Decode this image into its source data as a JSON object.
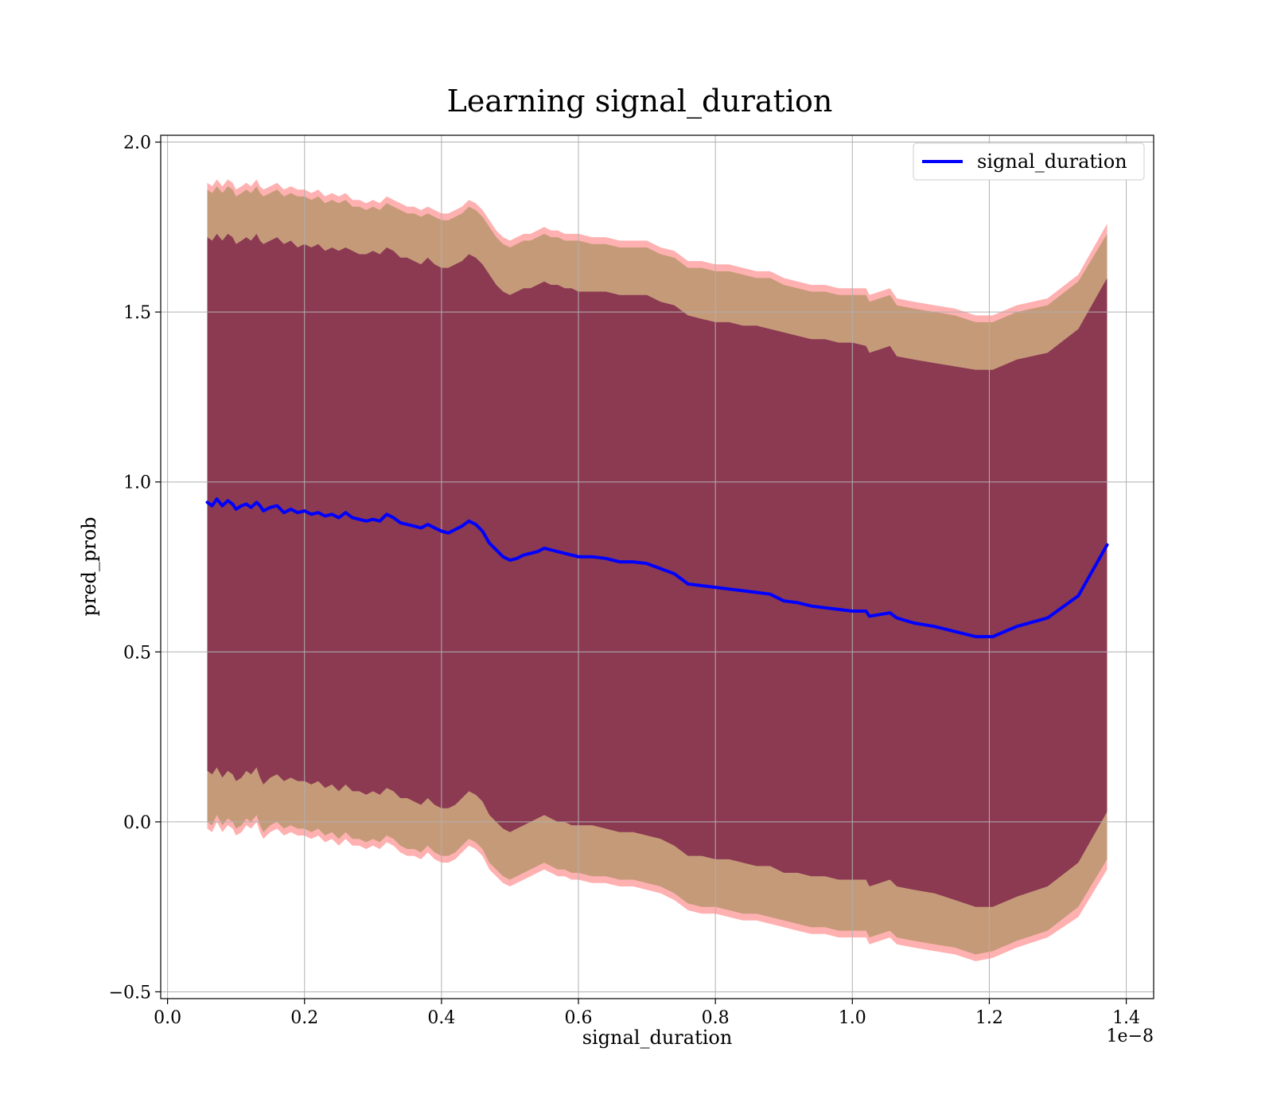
{
  "chart_data": {
    "type": "line",
    "title": "Learning signal_duration",
    "xlabel": "signal_duration",
    "ylabel": "pred_prob",
    "x_offset_label": "1e−8",
    "xlim": [
      -0.01,
      1.44
    ],
    "ylim": [
      -0.52,
      2.02
    ],
    "grid": true,
    "legend": {
      "placement": "top-right",
      "entries": [
        "signal_duration"
      ]
    },
    "x_ticks": [
      0.0,
      0.2,
      0.4,
      0.6,
      0.8,
      1.0,
      1.2,
      1.4
    ],
    "x_tick_labels": [
      "0.0",
      "0.2",
      "0.4",
      "0.6",
      "0.8",
      "1.0",
      "1.2",
      "1.4"
    ],
    "y_ticks": [
      -0.5,
      0.0,
      0.5,
      1.0,
      1.5,
      2.0
    ],
    "y_tick_labels": [
      "−0.5",
      "0.0",
      "0.5",
      "1.0",
      "1.5",
      "2.0"
    ],
    "series": [
      {
        "name": "signal_duration",
        "color": "#0000ff",
        "x": [
          0.058,
          0.065,
          0.072,
          0.08,
          0.088,
          0.095,
          0.1,
          0.108,
          0.115,
          0.122,
          0.13,
          0.135,
          0.14,
          0.15,
          0.16,
          0.17,
          0.18,
          0.19,
          0.2,
          0.21,
          0.22,
          0.23,
          0.24,
          0.25,
          0.26,
          0.27,
          0.28,
          0.29,
          0.3,
          0.31,
          0.32,
          0.33,
          0.34,
          0.35,
          0.36,
          0.37,
          0.38,
          0.39,
          0.4,
          0.41,
          0.42,
          0.43,
          0.44,
          0.45,
          0.46,
          0.47,
          0.48,
          0.49,
          0.5,
          0.51,
          0.52,
          0.53,
          0.54,
          0.55,
          0.56,
          0.57,
          0.58,
          0.59,
          0.6,
          0.62,
          0.64,
          0.66,
          0.68,
          0.7,
          0.72,
          0.74,
          0.76,
          0.78,
          0.8,
          0.82,
          0.84,
          0.86,
          0.88,
          0.9,
          0.92,
          0.94,
          0.96,
          0.98,
          1.0,
          1.02,
          1.025,
          1.04,
          1.055,
          1.065,
          1.09,
          1.12,
          1.15,
          1.18,
          1.205,
          1.24,
          1.285,
          1.33,
          1.372
        ],
        "values": [
          0.94,
          0.93,
          0.95,
          0.93,
          0.945,
          0.935,
          0.92,
          0.93,
          0.935,
          0.925,
          0.94,
          0.93,
          0.915,
          0.925,
          0.93,
          0.91,
          0.92,
          0.91,
          0.915,
          0.905,
          0.91,
          0.9,
          0.905,
          0.895,
          0.91,
          0.895,
          0.89,
          0.885,
          0.89,
          0.885,
          0.905,
          0.895,
          0.88,
          0.875,
          0.87,
          0.865,
          0.875,
          0.865,
          0.855,
          0.85,
          0.86,
          0.87,
          0.885,
          0.875,
          0.855,
          0.82,
          0.8,
          0.78,
          0.77,
          0.775,
          0.785,
          0.79,
          0.795,
          0.805,
          0.8,
          0.795,
          0.79,
          0.785,
          0.78,
          0.78,
          0.775,
          0.765,
          0.765,
          0.76,
          0.745,
          0.73,
          0.7,
          0.695,
          0.69,
          0.685,
          0.68,
          0.675,
          0.67,
          0.65,
          0.645,
          0.635,
          0.63,
          0.625,
          0.62,
          0.62,
          0.605,
          0.61,
          0.615,
          0.6,
          0.585,
          0.575,
          0.56,
          0.545,
          0.545,
          0.575,
          0.6,
          0.665,
          0.815
        ],
        "bands": [
          {
            "color": "#8b3a52",
            "lower": [
              0.15,
              0.14,
              0.16,
              0.13,
              0.15,
              0.14,
              0.12,
              0.13,
              0.15,
              0.14,
              0.16,
              0.13,
              0.11,
              0.13,
              0.14,
              0.12,
              0.13,
              0.12,
              0.12,
              0.11,
              0.12,
              0.1,
              0.11,
              0.09,
              0.11,
              0.09,
              0.09,
              0.08,
              0.09,
              0.08,
              0.1,
              0.09,
              0.07,
              0.07,
              0.06,
              0.05,
              0.07,
              0.05,
              0.04,
              0.04,
              0.05,
              0.07,
              0.09,
              0.08,
              0.06,
              0.02,
              0.0,
              -0.02,
              -0.03,
              -0.02,
              -0.01,
              0.0,
              0.01,
              0.02,
              0.01,
              0.0,
              0.0,
              -0.01,
              -0.01,
              -0.01,
              -0.02,
              -0.03,
              -0.03,
              -0.04,
              -0.05,
              -0.07,
              -0.1,
              -0.1,
              -0.11,
              -0.11,
              -0.12,
              -0.13,
              -0.13,
              -0.15,
              -0.15,
              -0.16,
              -0.16,
              -0.17,
              -0.17,
              -0.17,
              -0.19,
              -0.18,
              -0.17,
              -0.19,
              -0.2,
              -0.21,
              -0.23,
              -0.25,
              -0.25,
              -0.22,
              -0.19,
              -0.12,
              0.03
            ],
            "upper": [
              1.72,
              1.71,
              1.73,
              1.71,
              1.73,
              1.72,
              1.7,
              1.71,
              1.72,
              1.71,
              1.73,
              1.71,
              1.7,
              1.71,
              1.72,
              1.7,
              1.71,
              1.69,
              1.7,
              1.69,
              1.7,
              1.68,
              1.69,
              1.68,
              1.69,
              1.68,
              1.67,
              1.67,
              1.68,
              1.67,
              1.69,
              1.68,
              1.66,
              1.66,
              1.65,
              1.64,
              1.66,
              1.64,
              1.63,
              1.63,
              1.64,
              1.65,
              1.67,
              1.66,
              1.64,
              1.61,
              1.58,
              1.56,
              1.55,
              1.56,
              1.57,
              1.57,
              1.58,
              1.59,
              1.58,
              1.58,
              1.57,
              1.57,
              1.56,
              1.56,
              1.56,
              1.55,
              1.55,
              1.55,
              1.53,
              1.52,
              1.49,
              1.48,
              1.47,
              1.47,
              1.46,
              1.46,
              1.45,
              1.44,
              1.43,
              1.42,
              1.42,
              1.41,
              1.41,
              1.4,
              1.38,
              1.39,
              1.4,
              1.37,
              1.36,
              1.35,
              1.34,
              1.33,
              1.33,
              1.36,
              1.38,
              1.45,
              1.6
            ]
          },
          {
            "color": "#c59a79",
            "lower": [
              0.0,
              -0.01,
              0.02,
              -0.01,
              0.01,
              0.0,
              -0.02,
              -0.01,
              0.01,
              0.0,
              0.02,
              -0.01,
              -0.03,
              -0.01,
              0.0,
              -0.02,
              -0.01,
              -0.02,
              -0.02,
              -0.03,
              -0.02,
              -0.04,
              -0.03,
              -0.05,
              -0.03,
              -0.05,
              -0.05,
              -0.06,
              -0.05,
              -0.06,
              -0.04,
              -0.05,
              -0.07,
              -0.08,
              -0.08,
              -0.09,
              -0.07,
              -0.09,
              -0.1,
              -0.1,
              -0.09,
              -0.07,
              -0.05,
              -0.06,
              -0.08,
              -0.12,
              -0.14,
              -0.16,
              -0.17,
              -0.16,
              -0.15,
              -0.14,
              -0.13,
              -0.12,
              -0.13,
              -0.14,
              -0.14,
              -0.15,
              -0.15,
              -0.16,
              -0.16,
              -0.17,
              -0.17,
              -0.18,
              -0.19,
              -0.21,
              -0.24,
              -0.25,
              -0.25,
              -0.26,
              -0.27,
              -0.27,
              -0.28,
              -0.29,
              -0.3,
              -0.31,
              -0.31,
              -0.32,
              -0.32,
              -0.32,
              -0.34,
              -0.33,
              -0.32,
              -0.34,
              -0.35,
              -0.36,
              -0.37,
              -0.39,
              -0.38,
              -0.35,
              -0.32,
              -0.25,
              -0.11
            ],
            "upper": [
              1.86,
              1.85,
              1.87,
              1.85,
              1.87,
              1.86,
              1.84,
              1.85,
              1.86,
              1.85,
              1.87,
              1.85,
              1.84,
              1.85,
              1.86,
              1.84,
              1.85,
              1.84,
              1.84,
              1.83,
              1.84,
              1.82,
              1.83,
              1.82,
              1.83,
              1.81,
              1.81,
              1.8,
              1.81,
              1.8,
              1.82,
              1.81,
              1.8,
              1.79,
              1.79,
              1.78,
              1.79,
              1.78,
              1.77,
              1.77,
              1.78,
              1.79,
              1.81,
              1.8,
              1.78,
              1.75,
              1.72,
              1.7,
              1.69,
              1.7,
              1.71,
              1.71,
              1.72,
              1.73,
              1.72,
              1.72,
              1.71,
              1.71,
              1.71,
              1.7,
              1.7,
              1.69,
              1.69,
              1.69,
              1.67,
              1.66,
              1.63,
              1.63,
              1.62,
              1.62,
              1.61,
              1.6,
              1.6,
              1.58,
              1.57,
              1.56,
              1.56,
              1.55,
              1.55,
              1.55,
              1.53,
              1.54,
              1.55,
              1.52,
              1.51,
              1.5,
              1.49,
              1.47,
              1.47,
              1.5,
              1.52,
              1.59,
              1.73
            ]
          },
          {
            "color": "#ffb0b0",
            "lower": [
              -0.02,
              -0.03,
              0.0,
              -0.03,
              -0.01,
              -0.02,
              -0.04,
              -0.03,
              -0.01,
              -0.02,
              0.0,
              -0.03,
              -0.05,
              -0.03,
              -0.02,
              -0.04,
              -0.03,
              -0.04,
              -0.04,
              -0.05,
              -0.04,
              -0.06,
              -0.05,
              -0.07,
              -0.05,
              -0.07,
              -0.07,
              -0.08,
              -0.07,
              -0.08,
              -0.06,
              -0.07,
              -0.09,
              -0.1,
              -0.1,
              -0.11,
              -0.09,
              -0.11,
              -0.12,
              -0.12,
              -0.11,
              -0.09,
              -0.07,
              -0.08,
              -0.1,
              -0.14,
              -0.16,
              -0.18,
              -0.19,
              -0.18,
              -0.17,
              -0.16,
              -0.15,
              -0.14,
              -0.15,
              -0.16,
              -0.16,
              -0.17,
              -0.17,
              -0.18,
              -0.18,
              -0.19,
              -0.19,
              -0.2,
              -0.21,
              -0.23,
              -0.26,
              -0.27,
              -0.27,
              -0.28,
              -0.29,
              -0.29,
              -0.3,
              -0.31,
              -0.32,
              -0.33,
              -0.33,
              -0.34,
              -0.34,
              -0.34,
              -0.36,
              -0.35,
              -0.34,
              -0.36,
              -0.37,
              -0.38,
              -0.39,
              -0.41,
              -0.4,
              -0.37,
              -0.34,
              -0.28,
              -0.14
            ],
            "upper": [
              1.88,
              1.87,
              1.89,
              1.87,
              1.89,
              1.88,
              1.86,
              1.87,
              1.88,
              1.87,
              1.89,
              1.87,
              1.86,
              1.87,
              1.88,
              1.86,
              1.87,
              1.86,
              1.86,
              1.85,
              1.86,
              1.84,
              1.85,
              1.84,
              1.85,
              1.83,
              1.83,
              1.82,
              1.83,
              1.82,
              1.84,
              1.83,
              1.82,
              1.81,
              1.81,
              1.8,
              1.81,
              1.8,
              1.79,
              1.79,
              1.8,
              1.81,
              1.83,
              1.82,
              1.8,
              1.77,
              1.74,
              1.72,
              1.71,
              1.72,
              1.73,
              1.73,
              1.74,
              1.75,
              1.74,
              1.74,
              1.73,
              1.73,
              1.73,
              1.72,
              1.72,
              1.71,
              1.71,
              1.71,
              1.69,
              1.68,
              1.65,
              1.65,
              1.64,
              1.64,
              1.63,
              1.62,
              1.62,
              1.6,
              1.59,
              1.58,
              1.58,
              1.57,
              1.57,
              1.57,
              1.55,
              1.56,
              1.57,
              1.54,
              1.53,
              1.52,
              1.51,
              1.49,
              1.49,
              1.52,
              1.54,
              1.61,
              1.76
            ]
          }
        ]
      }
    ]
  }
}
